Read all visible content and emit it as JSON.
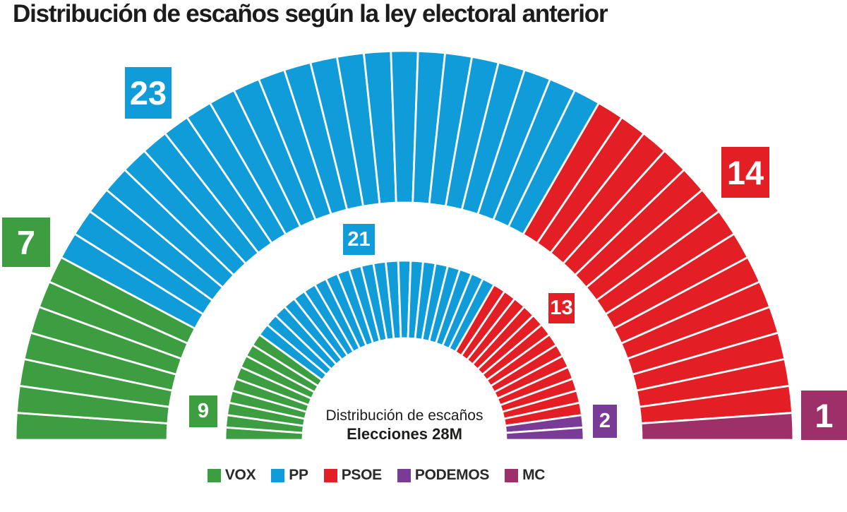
{
  "title": "Distribución de escaños según la ley electoral anterior",
  "chart_data": {
    "type": "pie",
    "variant": "parliament-hemicycle",
    "unit": "escaños",
    "layout_hints": {
      "shape": "semicircle",
      "start_angle_deg": 180,
      "end_angle_deg": 0,
      "grid": false,
      "legend_position": "bottom"
    },
    "rings": [
      {
        "name": "ley-electoral-anterior",
        "position": "outer",
        "total_seats": 45,
        "segments": [
          {
            "party": "VOX",
            "seats": 7,
            "color": "#3c9e41"
          },
          {
            "party": "PP",
            "seats": 23,
            "color": "#0f9cd8"
          },
          {
            "party": "PSOE",
            "seats": 14,
            "color": "#e41e25"
          },
          {
            "party": "MC",
            "seats": 1,
            "color": "#9d3069"
          }
        ]
      },
      {
        "name": "elecciones-28m",
        "position": "inner",
        "total_seats": 45,
        "segments": [
          {
            "party": "VOX",
            "seats": 9,
            "color": "#3c9e41"
          },
          {
            "party": "PP",
            "seats": 21,
            "color": "#0f9cd8"
          },
          {
            "party": "PSOE",
            "seats": 13,
            "color": "#e41e25"
          },
          {
            "party": "PODEMOS",
            "seats": 2,
            "color": "#7a3b97"
          }
        ]
      }
    ],
    "center_label": {
      "line1": "Distribución de escaños",
      "line2": "Elecciones 28M"
    },
    "legend": [
      {
        "label": "VOX",
        "color": "#3c9e41"
      },
      {
        "label": "PP",
        "color": "#0f9cd8"
      },
      {
        "label": "PSOE",
        "color": "#e41e25"
      },
      {
        "label": "PODEMOS",
        "color": "#7a3b97"
      },
      {
        "label": "MC",
        "color": "#9d3069"
      }
    ]
  }
}
